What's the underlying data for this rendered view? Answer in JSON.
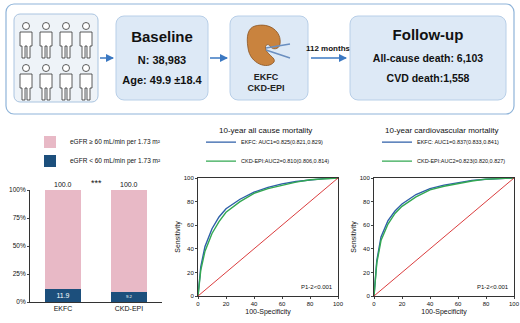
{
  "diagram": {
    "baseline": {
      "title": "Baseline",
      "lines": [
        "N: 38,983",
        "Age: 49.9 ±18.4"
      ]
    },
    "equations": [
      "EKFC",
      "CKD-EPI"
    ],
    "follow_up_time": "112 months",
    "follow_up": {
      "title": "Follow-up",
      "lines": [
        "All-cause death: 6,103",
        "CVD death:1,558"
      ]
    }
  },
  "chart_data": [
    {
      "type": "bar",
      "stacked": true,
      "legend": "top",
      "grid": false,
      "categories": [
        "EKFC",
        "CKD-EPI"
      ],
      "series": [
        {
          "name": "eGFR < 60 mL/min per 1.73 m²",
          "color": "#1c4f7c",
          "values": [
            11.9,
            9.2
          ],
          "data_labels": true
        },
        {
          "name": "eGFR ≥ 60 mL/min per 1.73 m²",
          "color": "#e8b9c6",
          "values": [
            88.1,
            90.8
          ]
        }
      ],
      "totals": {
        "values": [
          100.0,
          100.0
        ],
        "value_labels": [
          "100.0",
          "100.0"
        ]
      },
      "significance_label": "***",
      "ylim": [
        0,
        100
      ],
      "yticks": [
        {
          "value": 0,
          "label": "0%"
        },
        {
          "value": 25,
          "label": "25%"
        },
        {
          "value": 50,
          "label": "50%"
        },
        {
          "value": 75,
          "label": "75%"
        },
        {
          "value": 100,
          "label": "100%"
        }
      ]
    },
    {
      "type": "line",
      "title": "10-year all cause mortality",
      "xlabel": "100-Specificity",
      "ylabel": "Sensitivity",
      "legend": "top",
      "grid": false,
      "xlim": [
        0,
        100
      ],
      "ylim": [
        0,
        100
      ],
      "xticks": [
        0,
        20,
        40,
        60,
        80,
        100
      ],
      "yticks": [
        0,
        20,
        40,
        60,
        80,
        100
      ],
      "annotations": [
        "P1-2<0.001"
      ],
      "series": [
        {
          "name": "EKFC: AUC1=0.825(0.821,0.829)",
          "color": "#2e5fa8",
          "x": [
            0,
            2,
            5,
            10,
            15,
            20,
            30,
            40,
            50,
            60,
            70,
            80,
            90,
            100
          ],
          "values": [
            0,
            25,
            42,
            57,
            67,
            74,
            82,
            88,
            92,
            95,
            97,
            98.5,
            99.5,
            100
          ]
        },
        {
          "name": "CKD-EPI:AUC2=0.810(0.806,0.814)",
          "color": "#33a852",
          "x": [
            0,
            2,
            5,
            10,
            15,
            20,
            30,
            40,
            50,
            60,
            70,
            80,
            90,
            100
          ],
          "values": [
            0,
            22,
            38,
            53,
            63,
            71,
            80,
            87,
            91,
            94,
            96.5,
            98.5,
            99.5,
            100
          ]
        },
        {
          "color": "#d62728",
          "x": [
            0,
            100
          ],
          "values": [
            0,
            100
          ]
        }
      ]
    },
    {
      "type": "line",
      "title": "10-year cardiovascular mortality",
      "xlabel": "100-Specificity",
      "ylabel": "Sensitivity",
      "legend": "top",
      "grid": false,
      "xlim": [
        0,
        100
      ],
      "ylim": [
        0,
        100
      ],
      "xticks": [
        0,
        20,
        40,
        60,
        80,
        100
      ],
      "yticks": [
        0,
        20,
        40,
        60,
        80,
        100
      ],
      "annotations": [
        "P1-2<0.001"
      ],
      "series": [
        {
          "name": "EKFC: AUC1=0.837(0.833,0.841)",
          "color": "#2e5fa8",
          "x": [
            0,
            2,
            5,
            10,
            15,
            20,
            30,
            40,
            50,
            60,
            70,
            80,
            90,
            100
          ],
          "values": [
            0,
            30,
            50,
            64,
            72,
            78,
            86,
            91,
            94,
            96,
            98,
            99,
            99.7,
            100
          ]
        },
        {
          "name": "CKD-EPI:AUC2=0.823(0.820,0.827)",
          "color": "#33a852",
          "x": [
            0,
            2,
            5,
            10,
            15,
            20,
            30,
            40,
            50,
            60,
            70,
            80,
            90,
            100
          ],
          "values": [
            0,
            28,
            47,
            61,
            70,
            76,
            84,
            90,
            93,
            95.5,
            97.5,
            99,
            99.7,
            100
          ]
        },
        {
          "color": "#d62728",
          "x": [
            0,
            100
          ],
          "values": [
            0,
            100
          ]
        }
      ]
    }
  ]
}
